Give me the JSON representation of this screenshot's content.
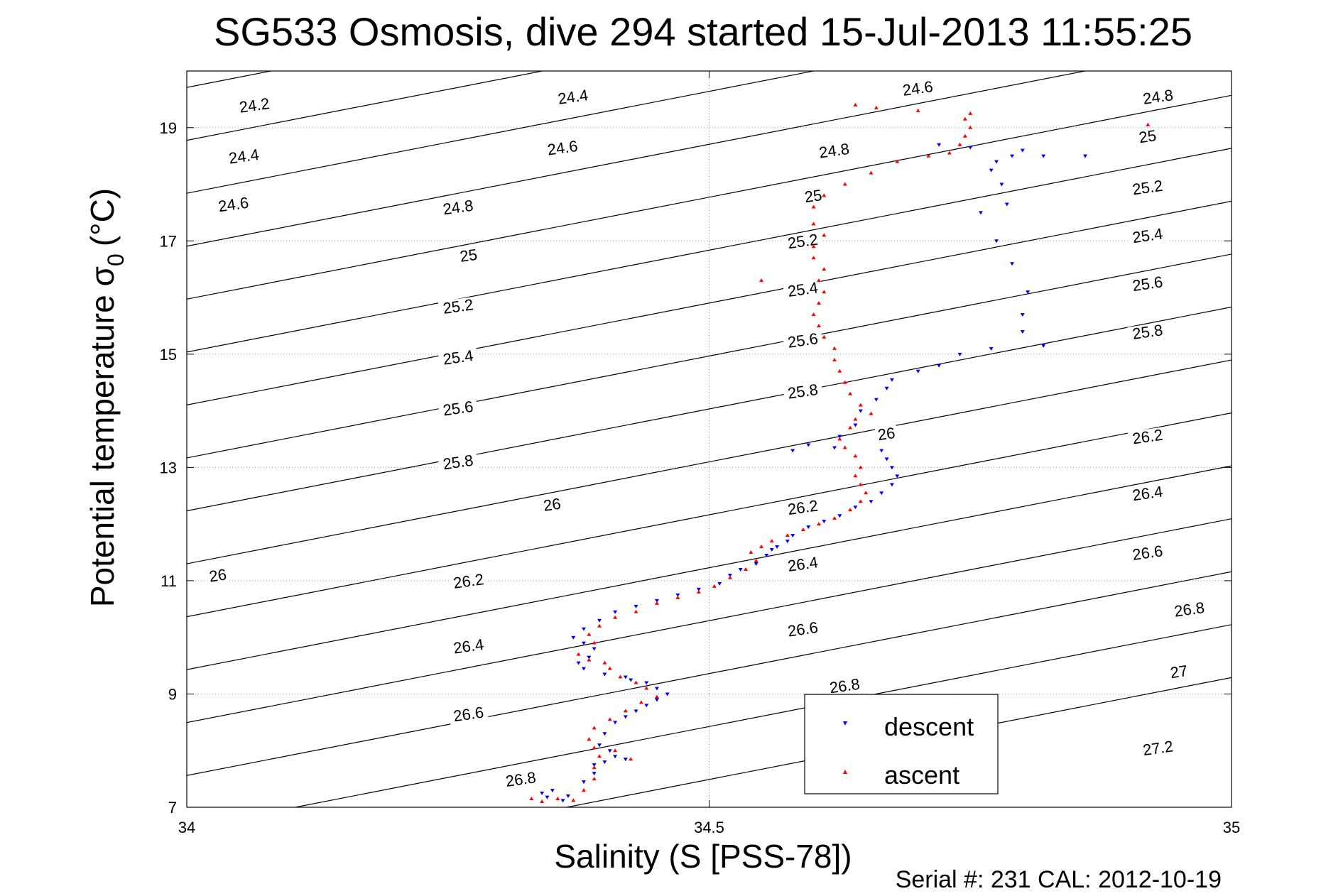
{
  "chart_data": {
    "type": "scatter",
    "title": "SG533 Osmosis, dive 294 started 15-Jul-2013 11:55:25",
    "xlabel": "Salinity (S [PSS-78])",
    "ylabel": "Potential temperature",
    "ylabel_symbol": "σ",
    "ylabel_subscript": "0",
    "ylabel_unit": "(°C)",
    "xlim": [
      34,
      35
    ],
    "ylim": [
      7,
      20
    ],
    "xticks": [
      34,
      34.5,
      35
    ],
    "xtick_labels": [
      "34",
      "34.5",
      "35"
    ],
    "yticks": [
      7,
      9,
      11,
      13,
      15,
      17,
      19
    ],
    "ytick_labels": [
      "7",
      "9",
      "11",
      "13",
      "15",
      "17",
      "19"
    ],
    "grid": "dotted at ticks",
    "legend_position": "bottom-center",
    "footer": "Serial #: 231  CAL: 2012-10-19",
    "colors": {
      "descent": "#0000ff",
      "ascent": "#ff0000",
      "contour": "#000000"
    },
    "contours": {
      "levels": [
        24.2,
        24.4,
        24.6,
        24.8,
        25,
        25.2,
        25.4,
        25.6,
        25.8,
        26,
        26.2,
        26.4,
        26.6,
        26.8,
        27,
        27.2
      ],
      "labels": [
        {
          "text": "24.2",
          "x": 34.065,
          "y": 19.35
        },
        {
          "text": "24.4",
          "x": 34.055,
          "y": 18.45
        },
        {
          "text": "24.6",
          "x": 34.045,
          "y": 17.6
        },
        {
          "text": "24.4",
          "x": 34.37,
          "y": 19.5
        },
        {
          "text": "24.6",
          "x": 34.36,
          "y": 18.6
        },
        {
          "text": "24.8",
          "x": 34.26,
          "y": 17.55
        },
        {
          "text": "25",
          "x": 34.27,
          "y": 16.7
        },
        {
          "text": "25.2",
          "x": 34.26,
          "y": 15.8
        },
        {
          "text": "25.4",
          "x": 34.26,
          "y": 14.9
        },
        {
          "text": "25.6",
          "x": 34.26,
          "y": 14.0
        },
        {
          "text": "25.8",
          "x": 34.26,
          "y": 13.05
        },
        {
          "text": "26",
          "x": 34.35,
          "y": 12.3
        },
        {
          "text": "26",
          "x": 34.03,
          "y": 11.05
        },
        {
          "text": "26.2",
          "x": 34.27,
          "y": 10.95
        },
        {
          "text": "26.4",
          "x": 34.27,
          "y": 9.8
        },
        {
          "text": "26.6",
          "x": 34.27,
          "y": 8.6
        },
        {
          "text": "26.8",
          "x": 34.32,
          "y": 7.45
        },
        {
          "text": "24.6",
          "x": 34.7,
          "y": 19.65
        },
        {
          "text": "24.8",
          "x": 34.62,
          "y": 18.55
        },
        {
          "text": "25",
          "x": 34.6,
          "y": 17.75
        },
        {
          "text": "25.2",
          "x": 34.59,
          "y": 16.95
        },
        {
          "text": "25.4",
          "x": 34.59,
          "y": 16.1
        },
        {
          "text": "25.6",
          "x": 34.59,
          "y": 15.2
        },
        {
          "text": "25.8",
          "x": 34.59,
          "y": 14.3
        },
        {
          "text": "26",
          "x": 34.67,
          "y": 13.55
        },
        {
          "text": "26.2",
          "x": 34.59,
          "y": 12.25
        },
        {
          "text": "26.4",
          "x": 34.59,
          "y": 11.25
        },
        {
          "text": "26.6",
          "x": 34.59,
          "y": 10.1
        },
        {
          "text": "26.8",
          "x": 34.63,
          "y": 9.1
        },
        {
          "text": "24.8",
          "x": 34.93,
          "y": 19.5
        },
        {
          "text": "25",
          "x": 34.92,
          "y": 18.8
        },
        {
          "text": "25.2",
          "x": 34.92,
          "y": 17.9
        },
        {
          "text": "25.4",
          "x": 34.92,
          "y": 17.05
        },
        {
          "text": "25.6",
          "x": 34.92,
          "y": 16.2
        },
        {
          "text": "25.8",
          "x": 34.92,
          "y": 15.35
        },
        {
          "text": "26.2",
          "x": 34.92,
          "y": 13.5
        },
        {
          "text": "26.4",
          "x": 34.92,
          "y": 12.5
        },
        {
          "text": "26.6",
          "x": 34.92,
          "y": 11.45
        },
        {
          "text": "26.8",
          "x": 34.96,
          "y": 10.45
        },
        {
          "text": "27",
          "x": 34.95,
          "y": 9.35
        },
        {
          "text": "27.2",
          "x": 34.93,
          "y": 8.0
        }
      ]
    },
    "series": [
      {
        "name": "descent",
        "marker": "triangle-down",
        "points": [
          [
            34.36,
            7.12
          ],
          [
            34.345,
            7.18
          ],
          [
            34.34,
            7.25
          ],
          [
            34.35,
            7.3
          ],
          [
            34.365,
            7.2
          ],
          [
            34.38,
            7.45
          ],
          [
            34.39,
            7.6
          ],
          [
            34.39,
            7.75
          ],
          [
            34.4,
            7.8
          ],
          [
            34.41,
            7.9
          ],
          [
            34.42,
            7.85
          ],
          [
            34.405,
            8.0
          ],
          [
            34.395,
            8.1
          ],
          [
            34.4,
            8.3
          ],
          [
            34.41,
            8.5
          ],
          [
            34.42,
            8.6
          ],
          [
            34.43,
            8.7
          ],
          [
            34.44,
            8.8
          ],
          [
            34.45,
            8.9
          ],
          [
            34.46,
            9.0
          ],
          [
            34.45,
            9.1
          ],
          [
            34.44,
            9.2
          ],
          [
            34.425,
            9.25
          ],
          [
            34.42,
            9.3
          ],
          [
            34.4,
            9.35
          ],
          [
            34.38,
            9.45
          ],
          [
            34.375,
            9.55
          ],
          [
            34.385,
            9.65
          ],
          [
            34.39,
            9.8
          ],
          [
            34.38,
            9.9
          ],
          [
            34.37,
            10.0
          ],
          [
            34.38,
            10.15
          ],
          [
            34.395,
            10.3
          ],
          [
            34.41,
            10.45
          ],
          [
            34.43,
            10.55
          ],
          [
            34.45,
            10.65
          ],
          [
            34.47,
            10.75
          ],
          [
            34.49,
            10.85
          ],
          [
            34.51,
            10.95
          ],
          [
            34.52,
            11.1
          ],
          [
            34.53,
            11.2
          ],
          [
            34.545,
            11.3
          ],
          [
            34.555,
            11.45
          ],
          [
            34.56,
            11.55
          ],
          [
            34.565,
            11.6
          ],
          [
            34.575,
            11.7
          ],
          [
            34.58,
            11.8
          ],
          [
            34.595,
            11.95
          ],
          [
            34.61,
            12.05
          ],
          [
            34.625,
            12.15
          ],
          [
            34.64,
            12.3
          ],
          [
            34.655,
            12.4
          ],
          [
            34.665,
            12.55
          ],
          [
            34.675,
            12.7
          ],
          [
            34.68,
            12.85
          ],
          [
            34.675,
            13.0
          ],
          [
            34.67,
            13.15
          ],
          [
            34.665,
            13.3
          ],
          [
            34.62,
            13.35
          ],
          [
            34.595,
            13.4
          ],
          [
            34.58,
            13.3
          ],
          [
            34.625,
            13.55
          ],
          [
            34.64,
            13.75
          ],
          [
            34.645,
            14.0
          ],
          [
            34.66,
            14.2
          ],
          [
            34.67,
            14.4
          ],
          [
            34.675,
            14.55
          ],
          [
            34.7,
            14.7
          ],
          [
            34.72,
            14.8
          ],
          [
            34.74,
            15.0
          ],
          [
            34.77,
            15.1
          ],
          [
            34.82,
            15.15
          ],
          [
            34.8,
            15.4
          ],
          [
            34.8,
            15.7
          ],
          [
            34.805,
            16.1
          ],
          [
            34.79,
            16.6
          ],
          [
            34.775,
            17.0
          ],
          [
            34.76,
            17.5
          ],
          [
            34.785,
            17.65
          ],
          [
            34.78,
            18.0
          ],
          [
            34.77,
            18.25
          ],
          [
            34.775,
            18.4
          ],
          [
            34.79,
            18.5
          ],
          [
            34.8,
            18.6
          ],
          [
            34.82,
            18.5
          ],
          [
            34.86,
            18.5
          ],
          [
            34.75,
            18.65
          ],
          [
            34.72,
            18.7
          ]
        ]
      },
      {
        "name": "ascent",
        "marker": "triangle-up",
        "points": [
          [
            34.33,
            7.15
          ],
          [
            34.34,
            7.1
          ],
          [
            34.355,
            7.15
          ],
          [
            34.37,
            7.12
          ],
          [
            34.38,
            7.3
          ],
          [
            34.39,
            7.5
          ],
          [
            34.39,
            7.7
          ],
          [
            34.395,
            7.9
          ],
          [
            34.41,
            8.0
          ],
          [
            34.425,
            7.85
          ],
          [
            34.39,
            8.05
          ],
          [
            34.385,
            8.2
          ],
          [
            34.39,
            8.4
          ],
          [
            34.405,
            8.55
          ],
          [
            34.42,
            8.7
          ],
          [
            34.435,
            8.85
          ],
          [
            34.45,
            8.95
          ],
          [
            34.44,
            9.1
          ],
          [
            34.43,
            9.2
          ],
          [
            34.415,
            9.3
          ],
          [
            34.405,
            9.45
          ],
          [
            34.4,
            9.55
          ],
          [
            34.385,
            9.6
          ],
          [
            34.375,
            9.7
          ],
          [
            34.39,
            9.9
          ],
          [
            34.385,
            10.05
          ],
          [
            34.395,
            10.2
          ],
          [
            34.41,
            10.35
          ],
          [
            34.43,
            10.45
          ],
          [
            34.45,
            10.6
          ],
          [
            34.47,
            10.7
          ],
          [
            34.49,
            10.8
          ],
          [
            34.505,
            10.9
          ],
          [
            34.52,
            11.05
          ],
          [
            34.535,
            11.2
          ],
          [
            34.545,
            11.35
          ],
          [
            34.54,
            11.5
          ],
          [
            34.55,
            11.6
          ],
          [
            34.56,
            11.7
          ],
          [
            34.575,
            11.8
          ],
          [
            34.59,
            11.9
          ],
          [
            34.605,
            12.0
          ],
          [
            34.62,
            12.1
          ],
          [
            34.635,
            12.25
          ],
          [
            34.645,
            12.4
          ],
          [
            34.65,
            12.55
          ],
          [
            34.645,
            12.7
          ],
          [
            34.64,
            12.85
          ],
          [
            34.645,
            13.0
          ],
          [
            34.64,
            13.2
          ],
          [
            34.63,
            13.35
          ],
          [
            34.625,
            13.5
          ],
          [
            34.635,
            13.7
          ],
          [
            34.64,
            13.85
          ],
          [
            34.655,
            13.95
          ],
          [
            34.645,
            14.1
          ],
          [
            34.635,
            14.3
          ],
          [
            34.63,
            14.5
          ],
          [
            34.625,
            14.7
          ],
          [
            34.62,
            14.9
          ],
          [
            34.62,
            15.1
          ],
          [
            34.61,
            15.3
          ],
          [
            34.605,
            15.5
          ],
          [
            34.6,
            15.7
          ],
          [
            34.605,
            15.9
          ],
          [
            34.61,
            16.1
          ],
          [
            34.605,
            16.3
          ],
          [
            34.61,
            16.5
          ],
          [
            34.6,
            16.7
          ],
          [
            34.6,
            16.9
          ],
          [
            34.61,
            17.1
          ],
          [
            34.6,
            17.3
          ],
          [
            34.6,
            17.6
          ],
          [
            34.61,
            17.8
          ],
          [
            34.63,
            18.0
          ],
          [
            34.655,
            18.2
          ],
          [
            34.68,
            18.4
          ],
          [
            34.71,
            18.5
          ],
          [
            34.73,
            18.55
          ],
          [
            34.74,
            18.7
          ],
          [
            34.745,
            18.85
          ],
          [
            34.75,
            19.0
          ],
          [
            34.745,
            19.15
          ],
          [
            34.75,
            19.25
          ],
          [
            34.7,
            19.3
          ],
          [
            34.64,
            19.4
          ],
          [
            34.66,
            19.35
          ],
          [
            34.92,
            19.05
          ],
          [
            34.55,
            16.3
          ]
        ]
      }
    ]
  }
}
